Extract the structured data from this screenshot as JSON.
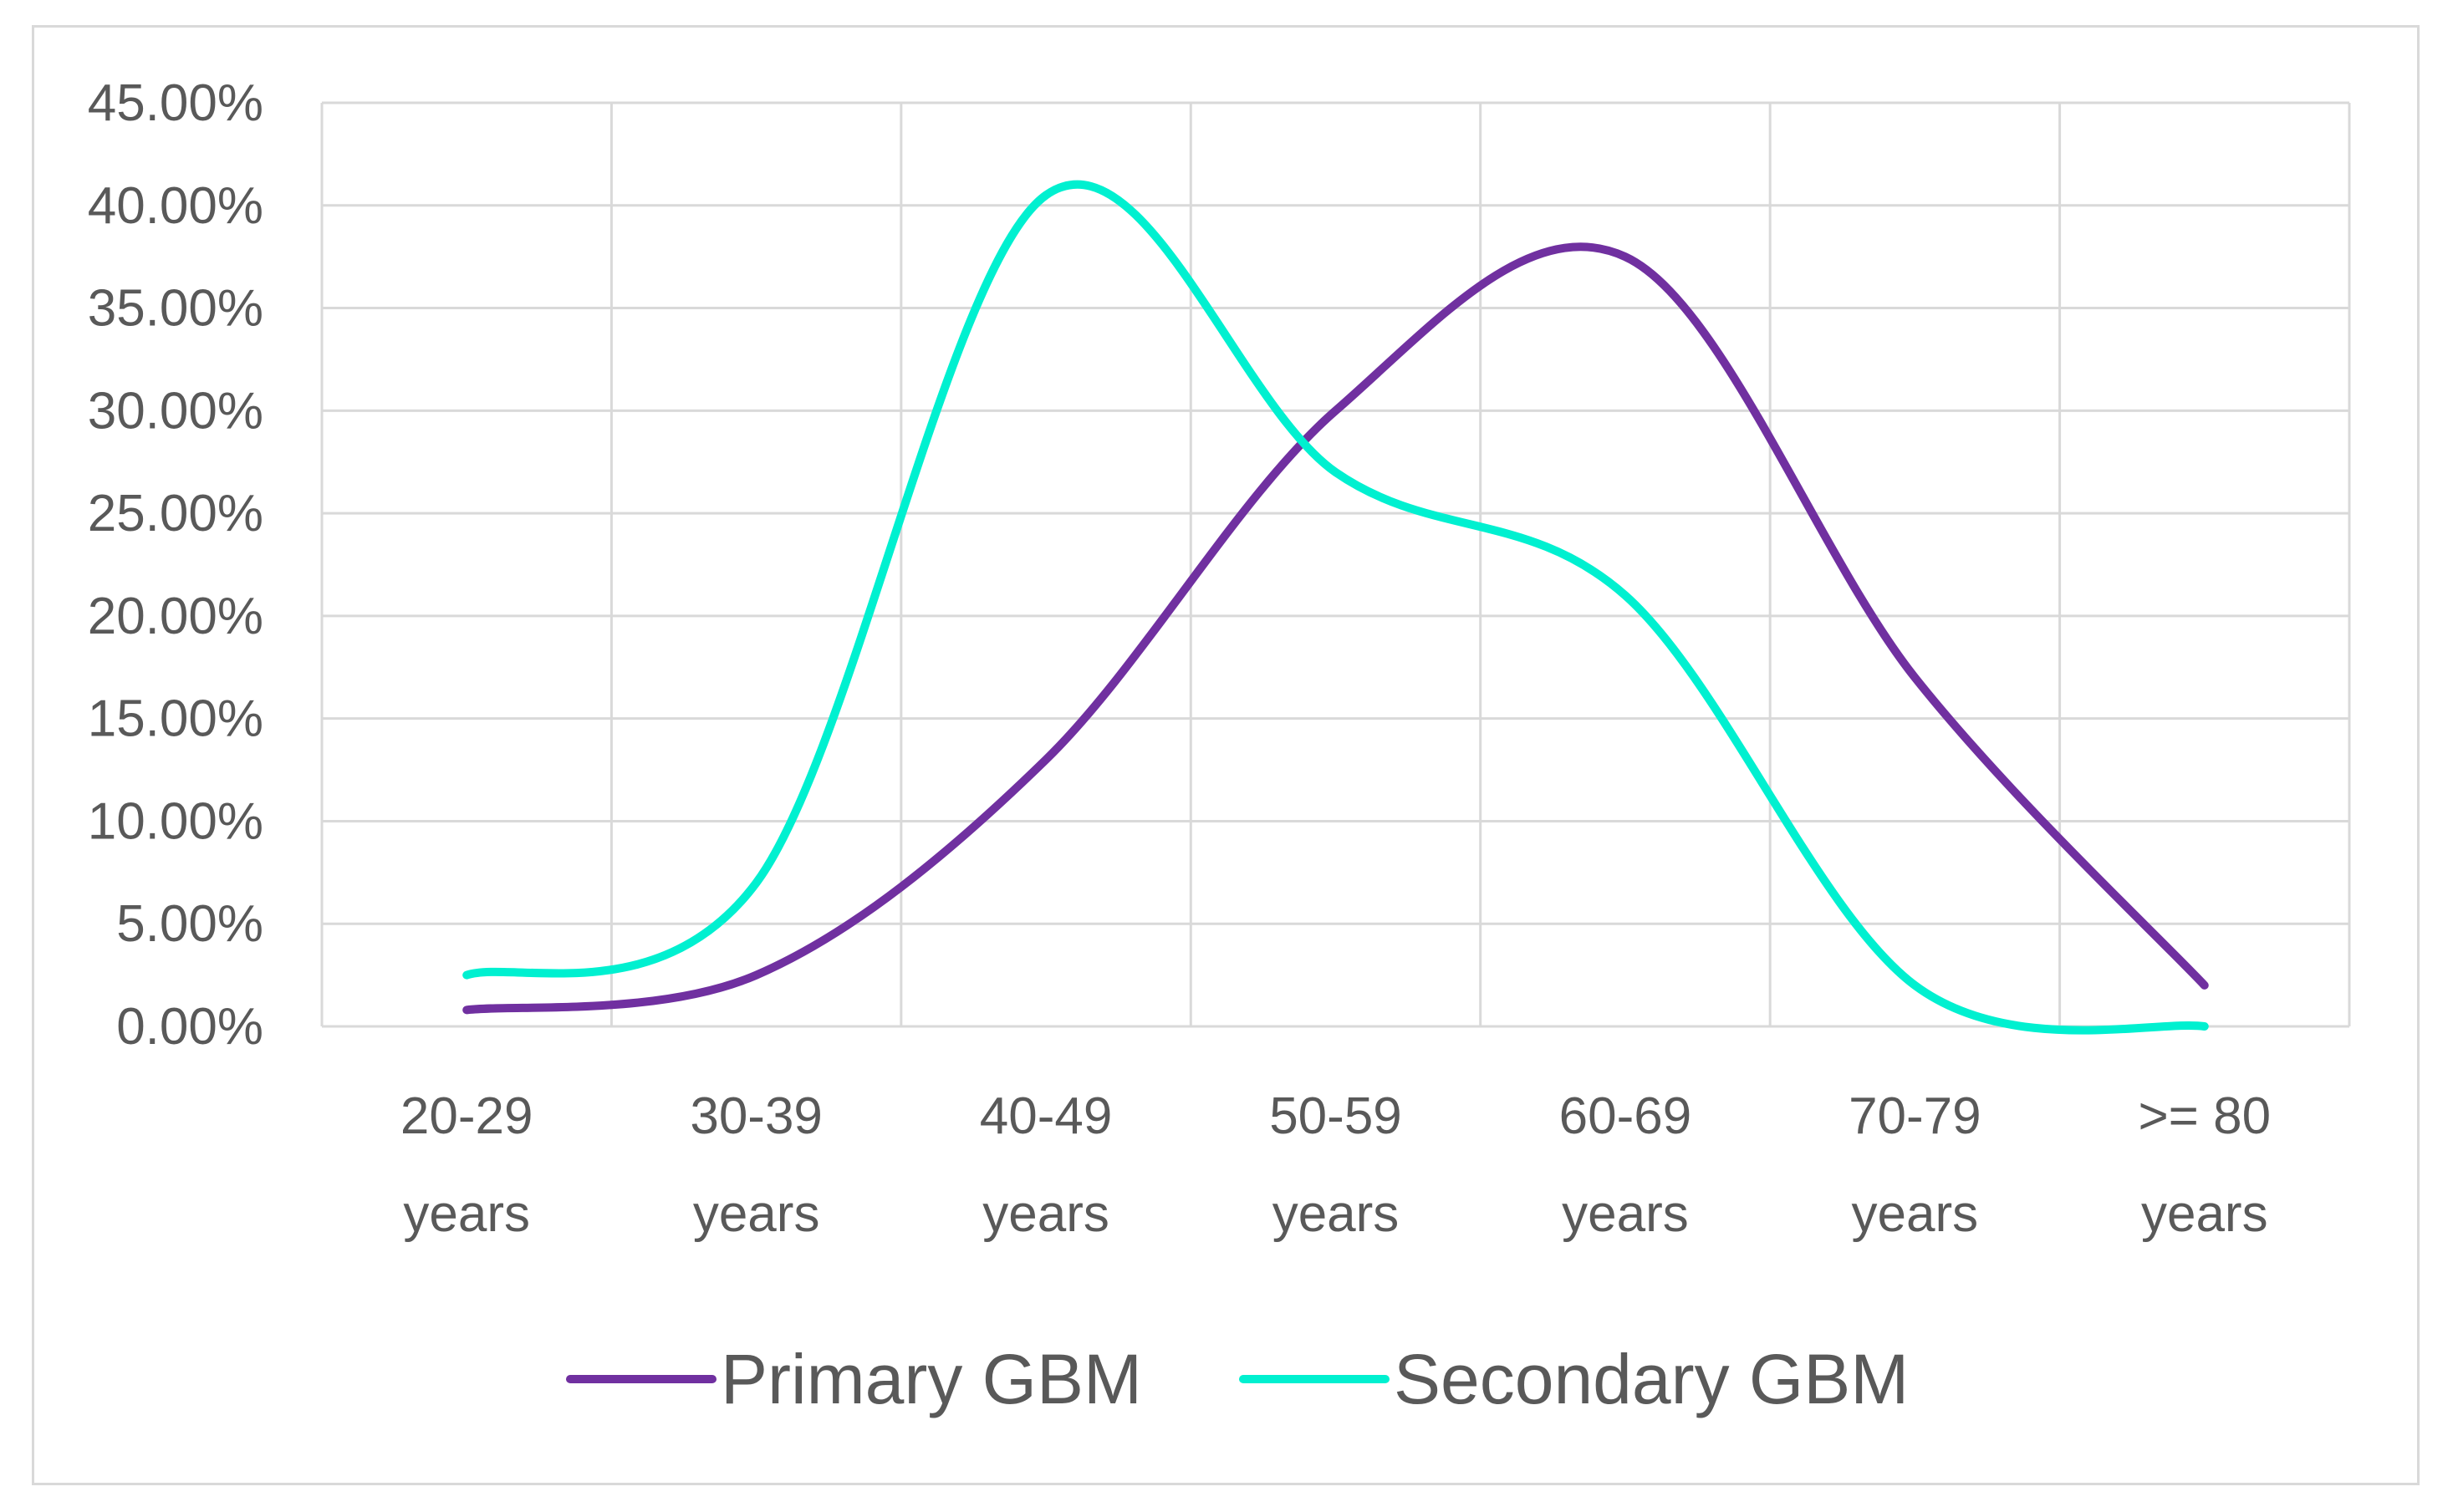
{
  "chart_data": {
    "type": "line",
    "smooth": true,
    "categories": [
      [
        "20-29",
        "years"
      ],
      [
        "30-39",
        "years"
      ],
      [
        "40-49",
        "years"
      ],
      [
        "50-59",
        "years"
      ],
      [
        "60-69",
        "years"
      ],
      [
        "70-79",
        "years"
      ],
      [
        ">= 80",
        "years"
      ]
    ],
    "ylim": [
      0,
      0.45
    ],
    "ytick_step": 0.05,
    "yticks": [
      "0.00%",
      "5.00%",
      "10.00%",
      "15.00%",
      "20.00%",
      "25.00%",
      "30.00%",
      "35.00%",
      "40.00%",
      "45.00%"
    ],
    "grid": true,
    "legend_position": "bottom",
    "series": [
      {
        "name": "Primary GBM",
        "color": "#7030a0",
        "values": [
          0.008,
          0.025,
          0.13,
          0.3,
          0.375,
          0.17,
          0.02
        ]
      },
      {
        "name": "Secondary GBM",
        "color": "#00f0d0",
        "values": [
          0.025,
          0.07,
          0.405,
          0.27,
          0.21,
          0.02,
          0.0
        ]
      }
    ],
    "colors": {
      "grid": "#d9d9d9",
      "text": "#595959",
      "frame": "#d9d9d9"
    }
  }
}
